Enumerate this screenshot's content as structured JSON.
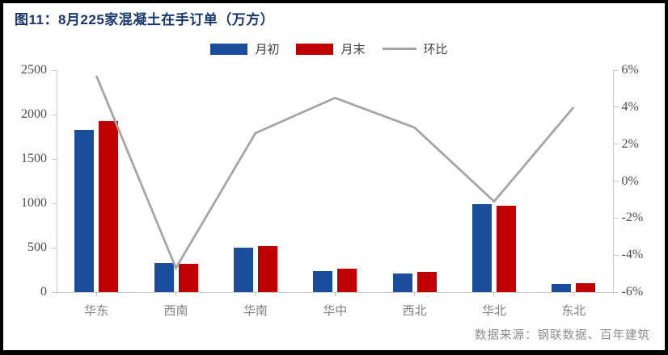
{
  "figure": {
    "title": "图11：8月225家混凝土在手订单（万方）",
    "source": "数据来源：钢联数据、百年建筑"
  },
  "legend": [
    {
      "label": "月初",
      "swatch": "rect",
      "color": "#1a4e9d"
    },
    {
      "label": "月末",
      "swatch": "rect",
      "color": "#c00000"
    },
    {
      "label": "环比",
      "swatch": "line",
      "color": "#a6a6a6"
    }
  ],
  "chart_data": {
    "type": "bar",
    "subtype": "grouped bars with secondary-axis line",
    "title": "图11：8月225家混凝土在手订单（万方）",
    "categories": [
      "华东",
      "西南",
      "华南",
      "华中",
      "西北",
      "华北",
      "东北"
    ],
    "series": [
      {
        "name": "月初",
        "type": "bar",
        "axis": "left",
        "color": "#1a4e9d",
        "values": [
          1830,
          330,
          500,
          235,
          210,
          990,
          90
        ]
      },
      {
        "name": "月末",
        "type": "bar",
        "axis": "left",
        "color": "#c00000",
        "values": [
          1930,
          315,
          520,
          260,
          225,
          970,
          100
        ]
      },
      {
        "name": "环比",
        "type": "line",
        "axis": "right",
        "color": "#a6a6a6",
        "values": [
          5.7,
          -4.7,
          2.6,
          4.5,
          2.9,
          -1.1,
          4.0
        ]
      }
    ],
    "y_left": {
      "min": 0,
      "max": 2500,
      "step": 500,
      "ticks": [
        "0",
        "500",
        "1000",
        "1500",
        "2000",
        "2500"
      ]
    },
    "y_right": {
      "min": -6,
      "max": 6,
      "step": 2,
      "ticks": [
        "-6%",
        "-4%",
        "-2%",
        "0%",
        "2%",
        "4%",
        "6%"
      ]
    },
    "grid": false,
    "legend_position": "top",
    "source": "数据来源：钢联数据、百年建筑"
  }
}
